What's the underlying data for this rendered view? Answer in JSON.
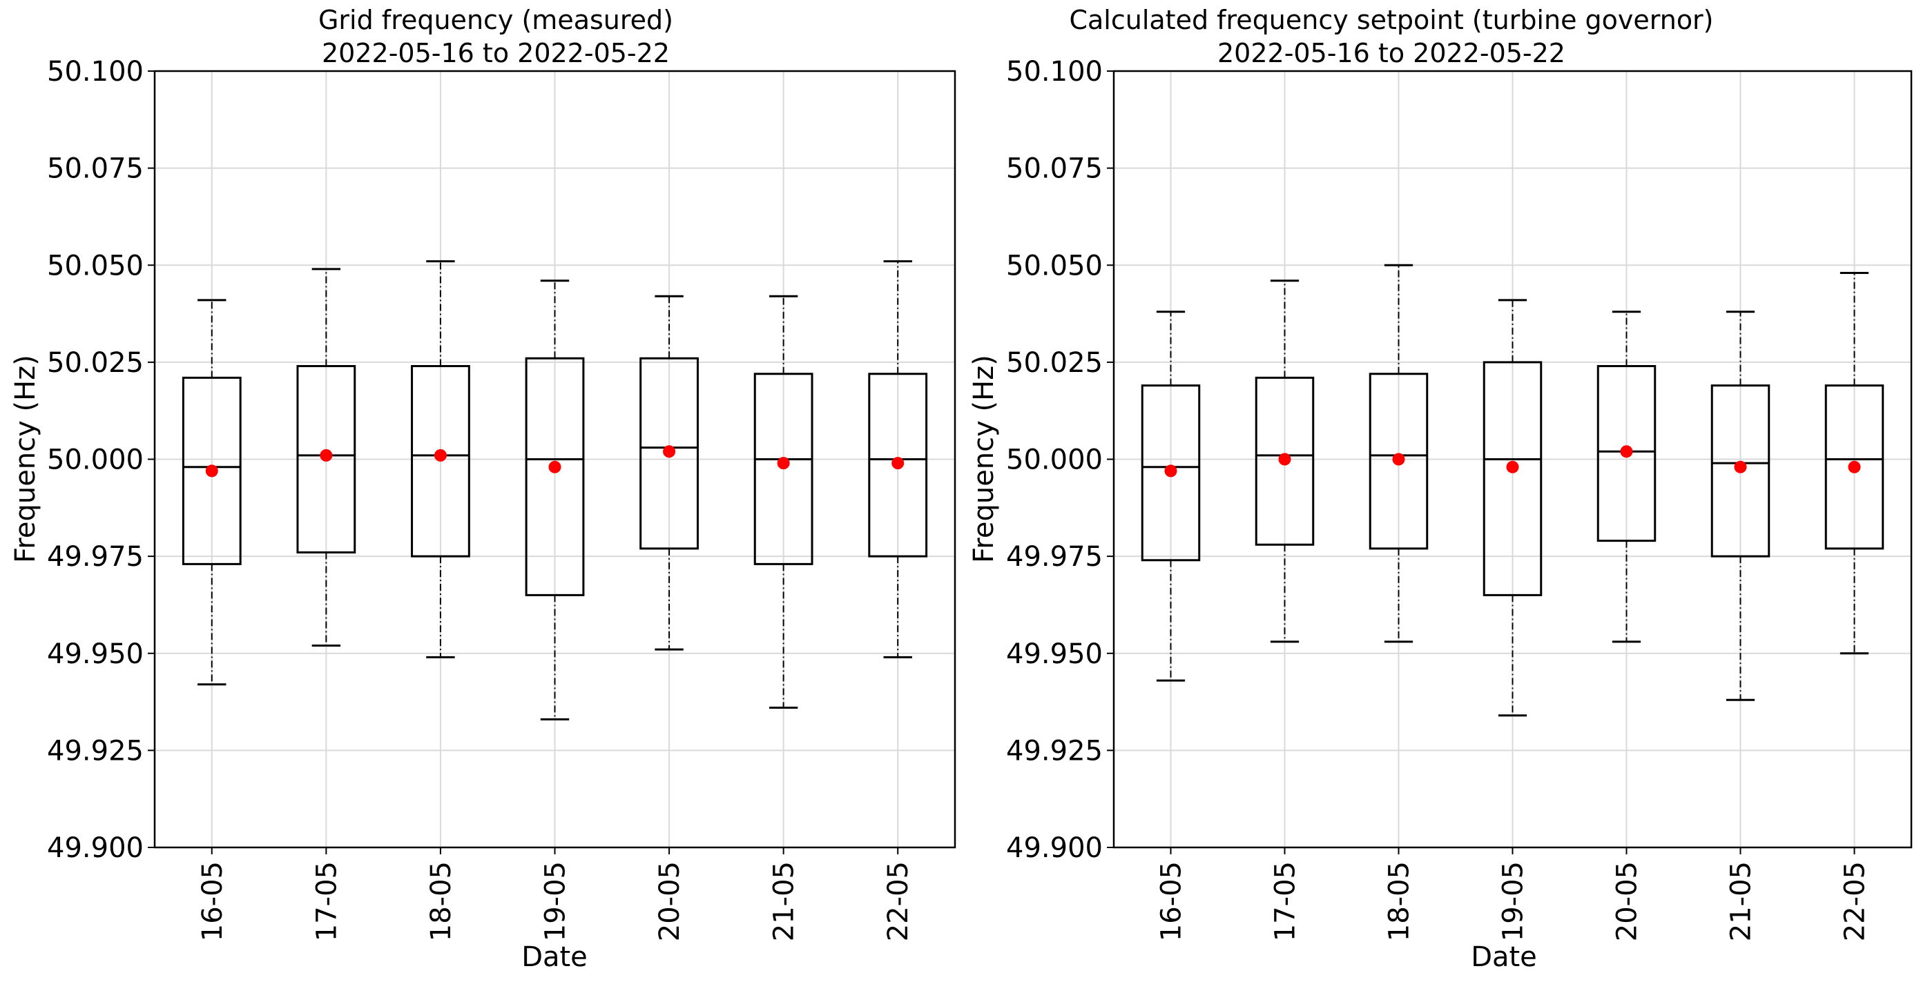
{
  "chart_data": [
    {
      "type": "boxplot",
      "title": "Grid frequency (measured)",
      "subtitle": "2022-05-16 to 2022-05-22",
      "xlabel": "Date",
      "ylabel": "Frequency (Hz)",
      "ylim": [
        49.9,
        50.1
      ],
      "yticks": [
        "50.100",
        "50.075",
        "50.050",
        "50.025",
        "50.000",
        "49.975",
        "49.950",
        "49.925",
        "49.900"
      ],
      "ytick_values": [
        50.1,
        50.075,
        50.05,
        50.025,
        50.0,
        49.975,
        49.95,
        49.925,
        49.9
      ],
      "grid": true,
      "categories": [
        "16-05",
        "17-05",
        "18-05",
        "19-05",
        "20-05",
        "21-05",
        "22-05"
      ],
      "boxes": [
        {
          "whislo": 49.942,
          "q1": 49.973,
          "med": 49.998,
          "q3": 50.021,
          "whishi": 50.041,
          "mean": 49.997
        },
        {
          "whislo": 49.952,
          "q1": 49.976,
          "med": 50.001,
          "q3": 50.024,
          "whishi": 50.049,
          "mean": 50.001
        },
        {
          "whislo": 49.949,
          "q1": 49.975,
          "med": 50.001,
          "q3": 50.024,
          "whishi": 50.051,
          "mean": 50.001
        },
        {
          "whislo": 49.933,
          "q1": 49.965,
          "med": 50.0,
          "q3": 50.026,
          "whishi": 50.046,
          "mean": 49.998
        },
        {
          "whislo": 49.951,
          "q1": 49.977,
          "med": 50.003,
          "q3": 50.026,
          "whishi": 50.042,
          "mean": 50.002
        },
        {
          "whislo": 49.936,
          "q1": 49.973,
          "med": 50.0,
          "q3": 50.022,
          "whishi": 50.042,
          "mean": 49.999
        },
        {
          "whislo": 49.949,
          "q1": 49.975,
          "med": 50.0,
          "q3": 50.022,
          "whishi": 50.051,
          "mean": 49.999
        }
      ],
      "mean_color": "#ff0000"
    },
    {
      "type": "boxplot",
      "title": "Calculated frequency setpoint (turbine governor)",
      "subtitle": "2022-05-16 to 2022-05-22",
      "xlabel": "Date",
      "ylabel": "Frequency (Hz)",
      "ylim": [
        49.9,
        50.1
      ],
      "yticks": [
        "50.100",
        "50.075",
        "50.050",
        "50.025",
        "50.000",
        "49.975",
        "49.950",
        "49.925",
        "49.900"
      ],
      "ytick_values": [
        50.1,
        50.075,
        50.05,
        50.025,
        50.0,
        49.975,
        49.95,
        49.925,
        49.9
      ],
      "grid": true,
      "categories": [
        "16-05",
        "17-05",
        "18-05",
        "19-05",
        "20-05",
        "21-05",
        "22-05"
      ],
      "boxes": [
        {
          "whislo": 49.943,
          "q1": 49.974,
          "med": 49.998,
          "q3": 50.019,
          "whishi": 50.038,
          "mean": 49.997
        },
        {
          "whislo": 49.953,
          "q1": 49.978,
          "med": 50.001,
          "q3": 50.021,
          "whishi": 50.046,
          "mean": 50.0
        },
        {
          "whislo": 49.953,
          "q1": 49.977,
          "med": 50.001,
          "q3": 50.022,
          "whishi": 50.05,
          "mean": 50.0
        },
        {
          "whislo": 49.934,
          "q1": 49.965,
          "med": 50.0,
          "q3": 50.025,
          "whishi": 50.041,
          "mean": 49.998
        },
        {
          "whislo": 49.953,
          "q1": 49.979,
          "med": 50.002,
          "q3": 50.024,
          "whishi": 50.038,
          "mean": 50.002
        },
        {
          "whislo": 49.938,
          "q1": 49.975,
          "med": 49.999,
          "q3": 50.019,
          "whishi": 50.038,
          "mean": 49.998
        },
        {
          "whislo": 49.95,
          "q1": 49.977,
          "med": 50.0,
          "q3": 50.019,
          "whishi": 50.048,
          "mean": 49.998
        }
      ],
      "mean_color": "#ff0000"
    }
  ]
}
